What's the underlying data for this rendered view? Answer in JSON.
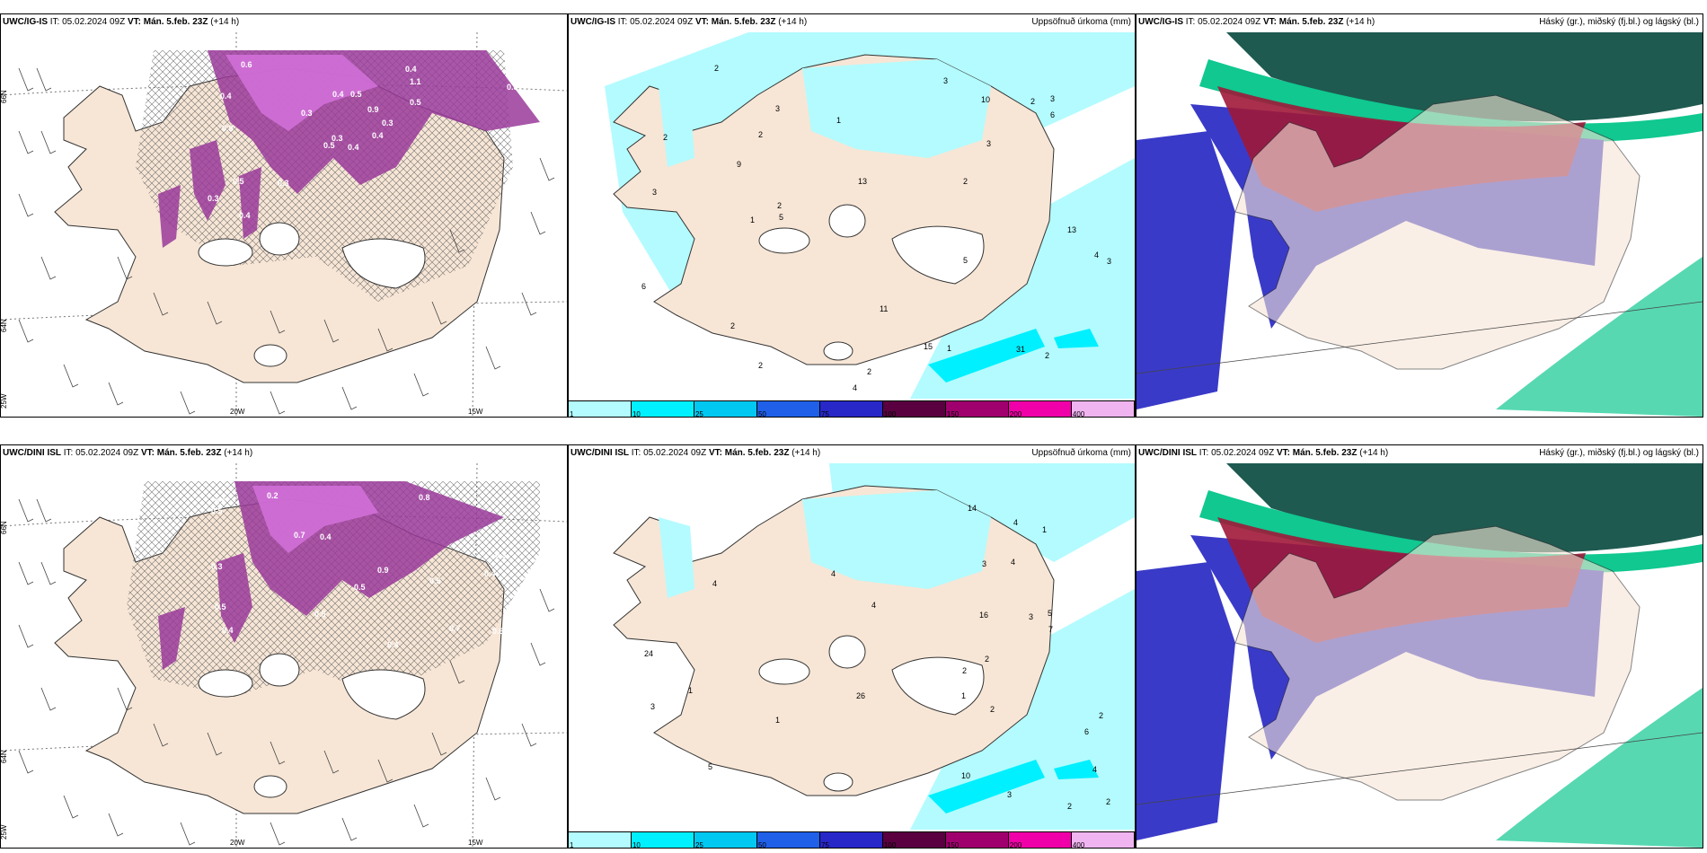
{
  "panels": [
    {
      "model": "UWC/IG-IS",
      "it_label": "IT:",
      "it_value": "05.02.2024 09Z",
      "vt_label": "VT:",
      "vt_value": "Mán. 5.feb. 23Z",
      "lead": "(+14 h)",
      "right": ""
    },
    {
      "model": "UWC/IG-IS",
      "it_label": "IT:",
      "it_value": "05.02.2024 09Z",
      "vt_label": "VT:",
      "vt_value": "Mán. 5.feb. 23Z",
      "lead": "(+14 h)",
      "right": "Uppsöfnuð úrkoma (mm)"
    },
    {
      "model": "UWC/IG-IS",
      "it_label": "IT:",
      "it_value": "05.02.2024 09Z",
      "vt_label": "VT:",
      "vt_value": "Mán. 5.feb. 23Z",
      "lead": "(+14 h)",
      "right": "Háský (gr.), miðský (fj.bl.) og lágský (bl.)"
    },
    {
      "model": "UWC/DINI ISL",
      "it_label": "IT:",
      "it_value": "05.02.2024 09Z",
      "vt_label": "VT:",
      "vt_value": "Mán. 5.feb. 23Z",
      "lead": "(+14 h)",
      "right": ""
    },
    {
      "model": "UWC/DINI ISL",
      "it_label": "IT:",
      "it_value": "05.02.2024 09Z",
      "vt_label": "VT:",
      "vt_value": "Mán. 5.feb. 23Z",
      "lead": "(+14 h)",
      "right": "Uppsöfnuð úrkoma (mm)"
    },
    {
      "model": "UWC/DINI ISL",
      "it_label": "IT:",
      "it_value": "05.02.2024 09Z",
      "vt_label": "VT:",
      "vt_value": "Mán. 5.feb. 23Z",
      "lead": "(+14 h)",
      "right": "Háský (gr.), miðský (fj.bl.) og lágský (bl.)"
    }
  ],
  "axis_labels": {
    "lat_66": "66N",
    "lat_64": "64N",
    "lat_25": "25W",
    "lon_20": "20W",
    "lon_15": "15W"
  },
  "colorbar": {
    "ticks": [
      "1",
      "10",
      "25",
      "50",
      "75",
      "100",
      "150",
      "200",
      "400"
    ],
    "colors": [
      "#b3fbff",
      "#00f0ff",
      "#00c8f0",
      "#2060e8",
      "#2828c8",
      "#5a0040",
      "#a0006e",
      "#f000a8",
      "#f0b4f0"
    ]
  },
  "colors": {
    "land": "#f7e6d6",
    "precip_light": "#b3fbff",
    "precip_mid": "#00f0ff",
    "snow_purple": "#9a3a9a",
    "snow_light": "#d070d8",
    "cloud_high": "#1e5a50",
    "cloud_mid": "#10c890",
    "cloud_low": "#3a3ac8",
    "cloud_red": "#a01838"
  },
  "snow_labels_top": [
    "0.4",
    "0.4",
    "0.3",
    "0.3",
    "0.3",
    "0.3",
    "0.4",
    "0.5",
    "1.1",
    "0.4",
    "0.6",
    "0.4",
    "0.8",
    "0.8",
    "0.5",
    "0.5",
    "0.4",
    "0.4",
    "0.9",
    "0.5",
    "0.3"
  ],
  "snow_labels_bot": [
    "0.5",
    "0.4",
    "0.4",
    "0.2",
    "0.4",
    "0.7",
    "0.5",
    "0.8",
    "0.7",
    "0.4",
    "0.5",
    "0.3",
    "0.5",
    "0.6",
    "0.5",
    "0.3",
    "0.5",
    "0.9"
  ],
  "precip_labels_top": [
    "2",
    "2",
    "2",
    "2",
    "2",
    "4",
    "5",
    "5",
    "3",
    "3",
    "4",
    "3",
    "3",
    "2",
    "3",
    "2",
    "2",
    "1",
    "2",
    "15",
    "31",
    "13",
    "13",
    "11",
    "10",
    "9",
    "6",
    "3",
    "2",
    "1",
    "6",
    "1"
  ],
  "precip_labels_bot": [
    "1",
    "2",
    "3",
    "6",
    "10",
    "4",
    "5",
    "4",
    "4",
    "3",
    "2",
    "2",
    "3",
    "2",
    "1",
    "2",
    "1",
    "1",
    "4",
    "4",
    "26",
    "24",
    "16",
    "14",
    "7",
    "5",
    "4",
    "3",
    "2"
  ]
}
